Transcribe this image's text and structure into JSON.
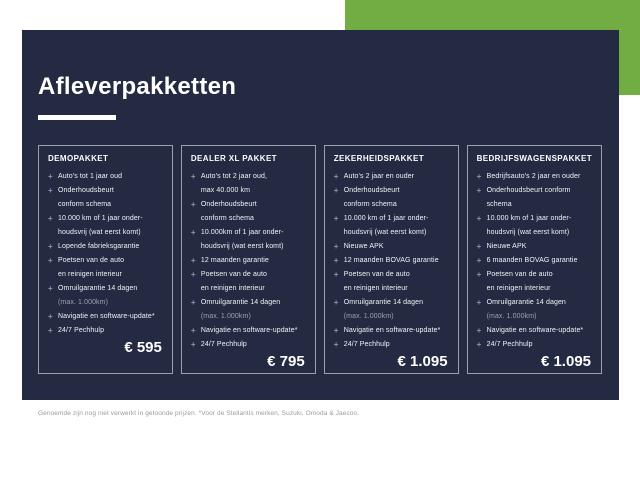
{
  "page": {
    "title": "Afleverpakketten",
    "footnote": "Genoemde zijn nog niet verwerkt in getoonde prijzen. *Voor de Stellantis merken, Suzuki, Omoda & Jaecoo."
  },
  "colors": {
    "green": "#72ad44",
    "navy": "#232a41",
    "card_border": "#9aa0ac",
    "marker": "#8e96aa",
    "dim_text": "#9ba2b3",
    "footnote": "#9b9b9b",
    "text": "#f2f4f8"
  },
  "cards": [
    {
      "title": "DEMOPAKKET",
      "price": "€ 595",
      "items": [
        {
          "lines": [
            "Auto's tot 1 jaar oud"
          ]
        },
        {
          "lines": [
            "Onderhoudsbeurt",
            "conform schema"
          ]
        },
        {
          "lines": [
            "10.000 km of 1 jaar onder-",
            "houdsvrij (wat eerst komt)"
          ]
        },
        {
          "lines": [
            "Lopende fabrieksgarantie"
          ]
        },
        {
          "lines": [
            "Poetsen van de auto",
            "en reinigen interieur"
          ]
        },
        {
          "lines": [
            "Omruilgarantie 14 dagen",
            "(max. 1.000km)"
          ],
          "dim_lines": [
            1
          ]
        },
        {
          "lines": [
            "Navigatie en software-update*"
          ]
        },
        {
          "lines": [
            "24/7 Pechhulp"
          ]
        }
      ]
    },
    {
      "title": "DEALER XL PAKKET",
      "price": "€ 795",
      "items": [
        {
          "lines": [
            "Auto's tot 2 jaar oud,",
            "max 40.000 km"
          ]
        },
        {
          "lines": [
            "Onderhoudsbeurt",
            "conform schema"
          ]
        },
        {
          "lines": [
            "10.000km of 1 jaar onder-",
            "houdsvrij (wat eerst komt)"
          ]
        },
        {
          "lines": [
            "12 maanden garantie"
          ]
        },
        {
          "lines": [
            "Poetsen van de auto",
            "en reinigen interieur"
          ]
        },
        {
          "lines": [
            "Omruilgarantie 14 dagen",
            "(max. 1.000km)"
          ],
          "dim_lines": [
            1
          ]
        },
        {
          "lines": [
            "Navigatie en software-update*"
          ]
        },
        {
          "lines": [
            "24/7 Pechhulp"
          ]
        }
      ]
    },
    {
      "title": "ZEKERHEIDSPAKKET",
      "price": "€ 1.095",
      "items": [
        {
          "lines": [
            "Auto's 2 jaar en ouder"
          ]
        },
        {
          "lines": [
            "Onderhoudsbeurt",
            "conform schema"
          ]
        },
        {
          "lines": [
            "10.000 km of 1 jaar onder-",
            "houdsvrij (wat eerst komt)"
          ]
        },
        {
          "lines": [
            "Nieuwe APK"
          ]
        },
        {
          "lines": [
            "12 maanden BOVAG garantie"
          ]
        },
        {
          "lines": [
            "Poetsen van de auto",
            "en reinigen interieur"
          ]
        },
        {
          "lines": [
            "Omruilgarantie 14 dagen",
            "(max. 1.000km)"
          ],
          "dim_lines": [
            1
          ]
        },
        {
          "lines": [
            "Navigatie en software-update*"
          ]
        },
        {
          "lines": [
            "24/7 Pechhulp"
          ]
        }
      ]
    },
    {
      "title": "BEDRIJFSWAGENSPAKKET",
      "price": "€ 1.095",
      "items": [
        {
          "lines": [
            "Bedrijfsauto's 2 jaar en ouder"
          ]
        },
        {
          "lines": [
            "Onderhoudsbeurt conform",
            "schema"
          ]
        },
        {
          "lines": [
            "10.000 km of 1 jaar onder-",
            "houdsvrij (wat eerst komt)"
          ]
        },
        {
          "lines": [
            "Nieuwe APK"
          ]
        },
        {
          "lines": [
            "6 maanden BOVAG garantie"
          ]
        },
        {
          "lines": [
            "Poetsen van de auto",
            "en reinigen interieur"
          ]
        },
        {
          "lines": [
            "Omruilgarantie 14 dagen",
            "(max. 1.000km)"
          ],
          "dim_lines": [
            1
          ]
        },
        {
          "lines": [
            "Navigatie en software-update*"
          ]
        },
        {
          "lines": [
            "24/7 Pechhulp"
          ]
        }
      ]
    }
  ]
}
